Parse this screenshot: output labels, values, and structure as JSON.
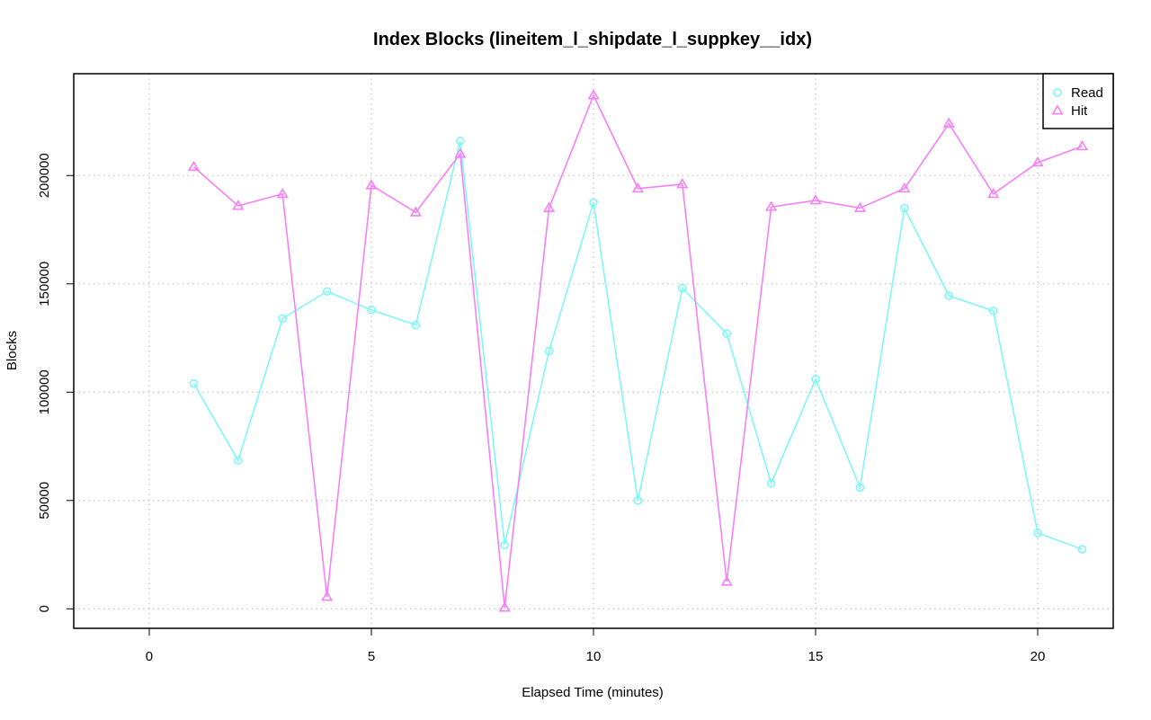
{
  "chart_data": {
    "type": "line",
    "title": "Index Blocks (lineitem_l_shipdate_l_suppkey__idx)",
    "xlabel": "Elapsed Time (minutes)",
    "ylabel": "Blocks",
    "xlim": [
      -1.7,
      21.7
    ],
    "ylim": [
      -9000,
      247000
    ],
    "xticks": [
      0,
      5,
      10,
      15,
      20
    ],
    "yticks": [
      0,
      50000,
      100000,
      150000,
      200000
    ],
    "grid": true,
    "legend_position": "top-right",
    "x": [
      1,
      2,
      3,
      4,
      5,
      6,
      7,
      8,
      9,
      10,
      11,
      12,
      13,
      14,
      15,
      16,
      17,
      18,
      19,
      20,
      21
    ],
    "series": [
      {
        "name": "Read",
        "color": "#7ff7f7",
        "marker": "circle",
        "values": [
          104000,
          68500,
          134000,
          146500,
          138000,
          131000,
          216000,
          29500,
          119000,
          187500,
          50000,
          148000,
          127000,
          58000,
          106000,
          56000,
          185000,
          144500,
          137500,
          35000,
          27500
        ]
      },
      {
        "name": "Hit",
        "color": "#f77ff7",
        "marker": "triangle",
        "values": [
          204000,
          186000,
          191500,
          5500,
          195500,
          183000,
          210000,
          500,
          185000,
          237000,
          194000,
          196000,
          12500,
          185500,
          188500,
          185000,
          194000,
          224000,
          191500,
          206000,
          213500
        ]
      }
    ]
  }
}
